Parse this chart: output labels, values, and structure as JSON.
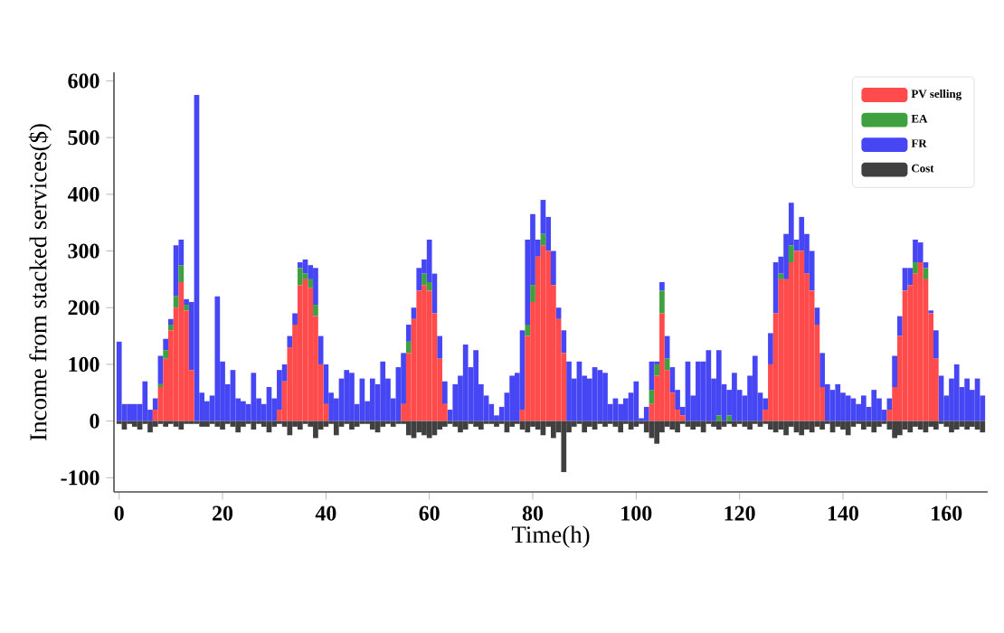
{
  "chart_data": {
    "type": "bar",
    "stacked": true,
    "xlabel": "Time(h)",
    "ylabel": "Income from stacked services($)",
    "legend": "top right",
    "xlim": [
      -1,
      168
    ],
    "ylim": [
      -125,
      615
    ],
    "xticks": [
      0,
      20,
      40,
      60,
      80,
      100,
      120,
      140,
      160
    ],
    "yticks": [
      -100,
      0,
      100,
      200,
      300,
      400,
      500,
      600
    ],
    "x": [
      0,
      1,
      2,
      3,
      4,
      5,
      6,
      7,
      8,
      9,
      10,
      11,
      12,
      13,
      14,
      15,
      16,
      17,
      18,
      19,
      20,
      21,
      22,
      23,
      24,
      25,
      26,
      27,
      28,
      29,
      30,
      31,
      32,
      33,
      34,
      35,
      36,
      37,
      38,
      39,
      40,
      41,
      42,
      43,
      44,
      45,
      46,
      47,
      48,
      49,
      50,
      51,
      52,
      53,
      54,
      55,
      56,
      57,
      58,
      59,
      60,
      61,
      62,
      63,
      64,
      65,
      66,
      67,
      68,
      69,
      70,
      71,
      72,
      73,
      74,
      75,
      76,
      77,
      78,
      79,
      80,
      81,
      82,
      83,
      84,
      85,
      86,
      87,
      88,
      89,
      90,
      91,
      92,
      93,
      94,
      95,
      96,
      97,
      98,
      99,
      100,
      101,
      102,
      103,
      104,
      105,
      106,
      107,
      108,
      109,
      110,
      111,
      112,
      113,
      114,
      115,
      116,
      117,
      118,
      119,
      120,
      121,
      122,
      123,
      124,
      125,
      126,
      127,
      128,
      129,
      130,
      131,
      132,
      133,
      134,
      135,
      136,
      137,
      138,
      139,
      140,
      141,
      142,
      143,
      144,
      145,
      146,
      147,
      148,
      149,
      150,
      151,
      152,
      153,
      154,
      155,
      156,
      157,
      158,
      159,
      160,
      161,
      162,
      163,
      164,
      165,
      166,
      167
    ],
    "series": [
      {
        "name": "PV selling",
        "color": "#ff4b4b",
        "values": [
          0,
          0,
          0,
          0,
          0,
          0,
          0,
          20,
          60,
          110,
          160,
          200,
          245,
          195,
          90,
          0,
          0,
          0,
          0,
          0,
          0,
          0,
          0,
          0,
          0,
          0,
          0,
          0,
          0,
          0,
          0,
          20,
          70,
          130,
          170,
          240,
          250,
          235,
          185,
          100,
          30,
          0,
          0,
          0,
          0,
          0,
          0,
          0,
          0,
          0,
          0,
          0,
          0,
          0,
          0,
          30,
          120,
          180,
          230,
          240,
          230,
          190,
          110,
          30,
          0,
          0,
          0,
          0,
          0,
          0,
          0,
          0,
          0,
          0,
          0,
          0,
          0,
          0,
          20,
          150,
          210,
          290,
          310,
          300,
          240,
          180,
          120,
          0,
          0,
          0,
          0,
          0,
          0,
          0,
          0,
          0,
          0,
          0,
          0,
          0,
          0,
          0,
          0,
          30,
          80,
          190,
          90,
          50,
          20,
          10,
          0,
          0,
          0,
          0,
          0,
          0,
          0,
          0,
          0,
          0,
          0,
          0,
          0,
          0,
          0,
          20,
          100,
          190,
          250,
          250,
          280,
          300,
          300,
          260,
          230,
          170,
          60,
          0,
          0,
          0,
          0,
          0,
          0,
          0,
          0,
          0,
          0,
          0,
          0,
          20,
          60,
          150,
          230,
          240,
          260,
          280,
          250,
          190,
          110,
          0,
          0,
          0,
          0,
          0,
          0,
          0,
          0,
          0
        ]
      },
      {
        "name": "EA",
        "color": "#3fa03f",
        "values": [
          0,
          0,
          0,
          0,
          0,
          0,
          0,
          0,
          5,
          15,
          10,
          20,
          30,
          10,
          0,
          0,
          0,
          0,
          0,
          0,
          0,
          0,
          0,
          0,
          0,
          0,
          0,
          0,
          0,
          0,
          0,
          0,
          0,
          0,
          0,
          30,
          10,
          15,
          20,
          0,
          0,
          0,
          0,
          0,
          0,
          0,
          0,
          0,
          0,
          0,
          0,
          0,
          0,
          0,
          0,
          0,
          20,
          0,
          0,
          20,
          15,
          0,
          0,
          0,
          0,
          0,
          0,
          0,
          0,
          0,
          0,
          0,
          0,
          0,
          0,
          0,
          0,
          0,
          0,
          20,
          30,
          0,
          20,
          0,
          0,
          0,
          0,
          0,
          0,
          0,
          0,
          0,
          0,
          0,
          0,
          0,
          0,
          0,
          0,
          0,
          0,
          0,
          0,
          25,
          20,
          40,
          20,
          0,
          0,
          0,
          0,
          0,
          0,
          0,
          0,
          0,
          10,
          0,
          10,
          0,
          0,
          0,
          0,
          0,
          0,
          0,
          0,
          0,
          10,
          0,
          30,
          0,
          0,
          0,
          0,
          0,
          0,
          0,
          0,
          0,
          0,
          0,
          0,
          0,
          0,
          0,
          0,
          0,
          0,
          0,
          0,
          0,
          0,
          0,
          20,
          0,
          20,
          0,
          0,
          0,
          0,
          0,
          0,
          0,
          0,
          0,
          0,
          0
        ]
      },
      {
        "name": "FR",
        "color": "#4646f5",
        "values": [
          140,
          30,
          30,
          30,
          30,
          70,
          20,
          20,
          50,
          20,
          10,
          90,
          45,
          10,
          120,
          575,
          50,
          35,
          45,
          220,
          105,
          65,
          90,
          40,
          35,
          30,
          85,
          40,
          30,
          60,
          40,
          70,
          30,
          20,
          20,
          10,
          25,
          25,
          65,
          50,
          70,
          50,
          40,
          75,
          90,
          85,
          30,
          75,
          35,
          75,
          65,
          105,
          75,
          40,
          95,
          90,
          30,
          20,
          40,
          25,
          75,
          70,
          40,
          40,
          20,
          65,
          80,
          135,
          95,
          125,
          65,
          45,
          30,
          10,
          25,
          50,
          80,
          85,
          140,
          150,
          125,
          30,
          60,
          60,
          60,
          20,
          40,
          105,
          75,
          105,
          80,
          75,
          95,
          90,
          85,
          30,
          40,
          30,
          40,
          50,
          70,
          5,
          25,
          50,
          5,
          15,
          40,
          45,
          35,
          15,
          105,
          45,
          105,
          105,
          125,
          75,
          115,
          65,
          45,
          85,
          55,
          45,
          80,
          115,
          50,
          20,
          55,
          90,
          30,
          80,
          75,
          20,
          60,
          70,
          70,
          30,
          60,
          65,
          55,
          65,
          50,
          45,
          40,
          30,
          45,
          25,
          55,
          40,
          20,
          20,
          55,
          35,
          40,
          30,
          40,
          35,
          10,
          5,
          50,
          80,
          45,
          75,
          100,
          60,
          75,
          55,
          75,
          45
        ]
      },
      {
        "name": "Cost",
        "color": "#404040",
        "values": [
          -5,
          -15,
          -5,
          -10,
          -15,
          -5,
          -20,
          -10,
          -5,
          -10,
          -5,
          -10,
          -15,
          -5,
          -5,
          -5,
          -10,
          -10,
          -5,
          -10,
          -15,
          -5,
          -10,
          -20,
          -10,
          -5,
          -15,
          -5,
          -10,
          -20,
          -10,
          -5,
          -10,
          -25,
          -10,
          -15,
          -5,
          -10,
          -30,
          -15,
          -10,
          -5,
          -25,
          -10,
          -5,
          -15,
          -10,
          -5,
          -5,
          -15,
          -20,
          -10,
          -5,
          -10,
          -5,
          -5,
          -25,
          -30,
          -20,
          -25,
          -30,
          -25,
          -15,
          -10,
          -5,
          -10,
          -20,
          -15,
          -5,
          -10,
          -15,
          -5,
          -5,
          -10,
          -5,
          -20,
          -10,
          -5,
          -15,
          -20,
          -10,
          -15,
          -25,
          -10,
          -30,
          -20,
          -90,
          -20,
          -10,
          -5,
          -20,
          -10,
          -15,
          -5,
          -10,
          -5,
          -10,
          -20,
          -5,
          -15,
          -10,
          -5,
          -20,
          -30,
          -40,
          -20,
          -10,
          -15,
          -20,
          -5,
          -10,
          -15,
          -10,
          -20,
          -5,
          -10,
          -15,
          -10,
          -5,
          -10,
          -5,
          -10,
          -15,
          -5,
          -10,
          -5,
          -15,
          -20,
          -15,
          -25,
          -10,
          -20,
          -25,
          -15,
          -20,
          -10,
          -15,
          -5,
          -20,
          -10,
          -15,
          -25,
          -10,
          -5,
          -15,
          -10,
          -20,
          -10,
          -5,
          -15,
          -30,
          -25,
          -15,
          -20,
          -10,
          -15,
          -20,
          -10,
          -15,
          -5,
          -10,
          -20,
          -15,
          -10,
          -15,
          -10,
          -15,
          -20
        ]
      }
    ]
  }
}
